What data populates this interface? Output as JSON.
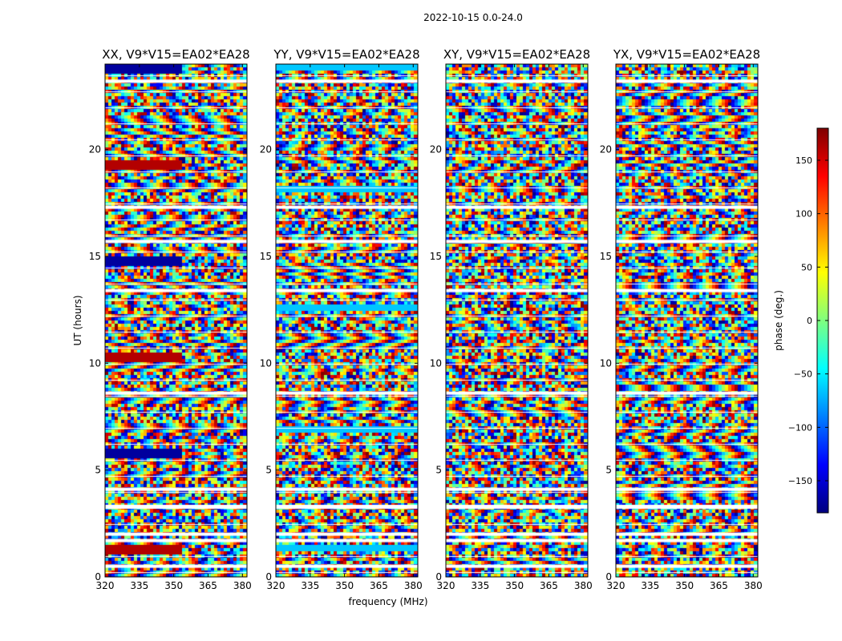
{
  "chart_data": {
    "type": "heatmap",
    "suptitle": "2022-10-15 0.0-24.0",
    "xlabel": "frequency (MHz)",
    "ylabel": "UT (hours)",
    "xlim": [
      320,
      382
    ],
    "ylim": [
      0,
      24
    ],
    "x_ticks": [
      320,
      335,
      350,
      365,
      380
    ],
    "y_ticks": [
      0,
      5,
      10,
      15,
      20
    ],
    "colormap": "jet",
    "panels": [
      {
        "title": "XX, V9*V15=EA02*EA28"
      },
      {
        "title": "YY, V9*V15=EA02*EA28"
      },
      {
        "title": "XY, V9*V15=EA02*EA28"
      },
      {
        "title": "YX, V9*V15=EA02*EA28"
      }
    ],
    "colorbar": {
      "label": "phase (deg.)",
      "range": [
        -180,
        180
      ],
      "ticks": [
        150,
        100,
        50,
        0,
        -50,
        -100,
        -150
      ],
      "tick_labels": [
        "150",
        "100",
        "50",
        "0",
        "−50",
        "−100",
        "−150"
      ]
    },
    "blank_rows_ut": [
      0.5,
      1.7,
      2.0,
      3.3,
      4.1,
      8.6,
      13.4,
      15.7,
      17.3,
      23.2
    ],
    "colors": {
      "jet": [
        "#00007f",
        "#0000ff",
        "#007fff",
        "#00ffff",
        "#7fff7f",
        "#ffff00",
        "#ff7f00",
        "#ff0000",
        "#7f0000"
      ]
    }
  }
}
